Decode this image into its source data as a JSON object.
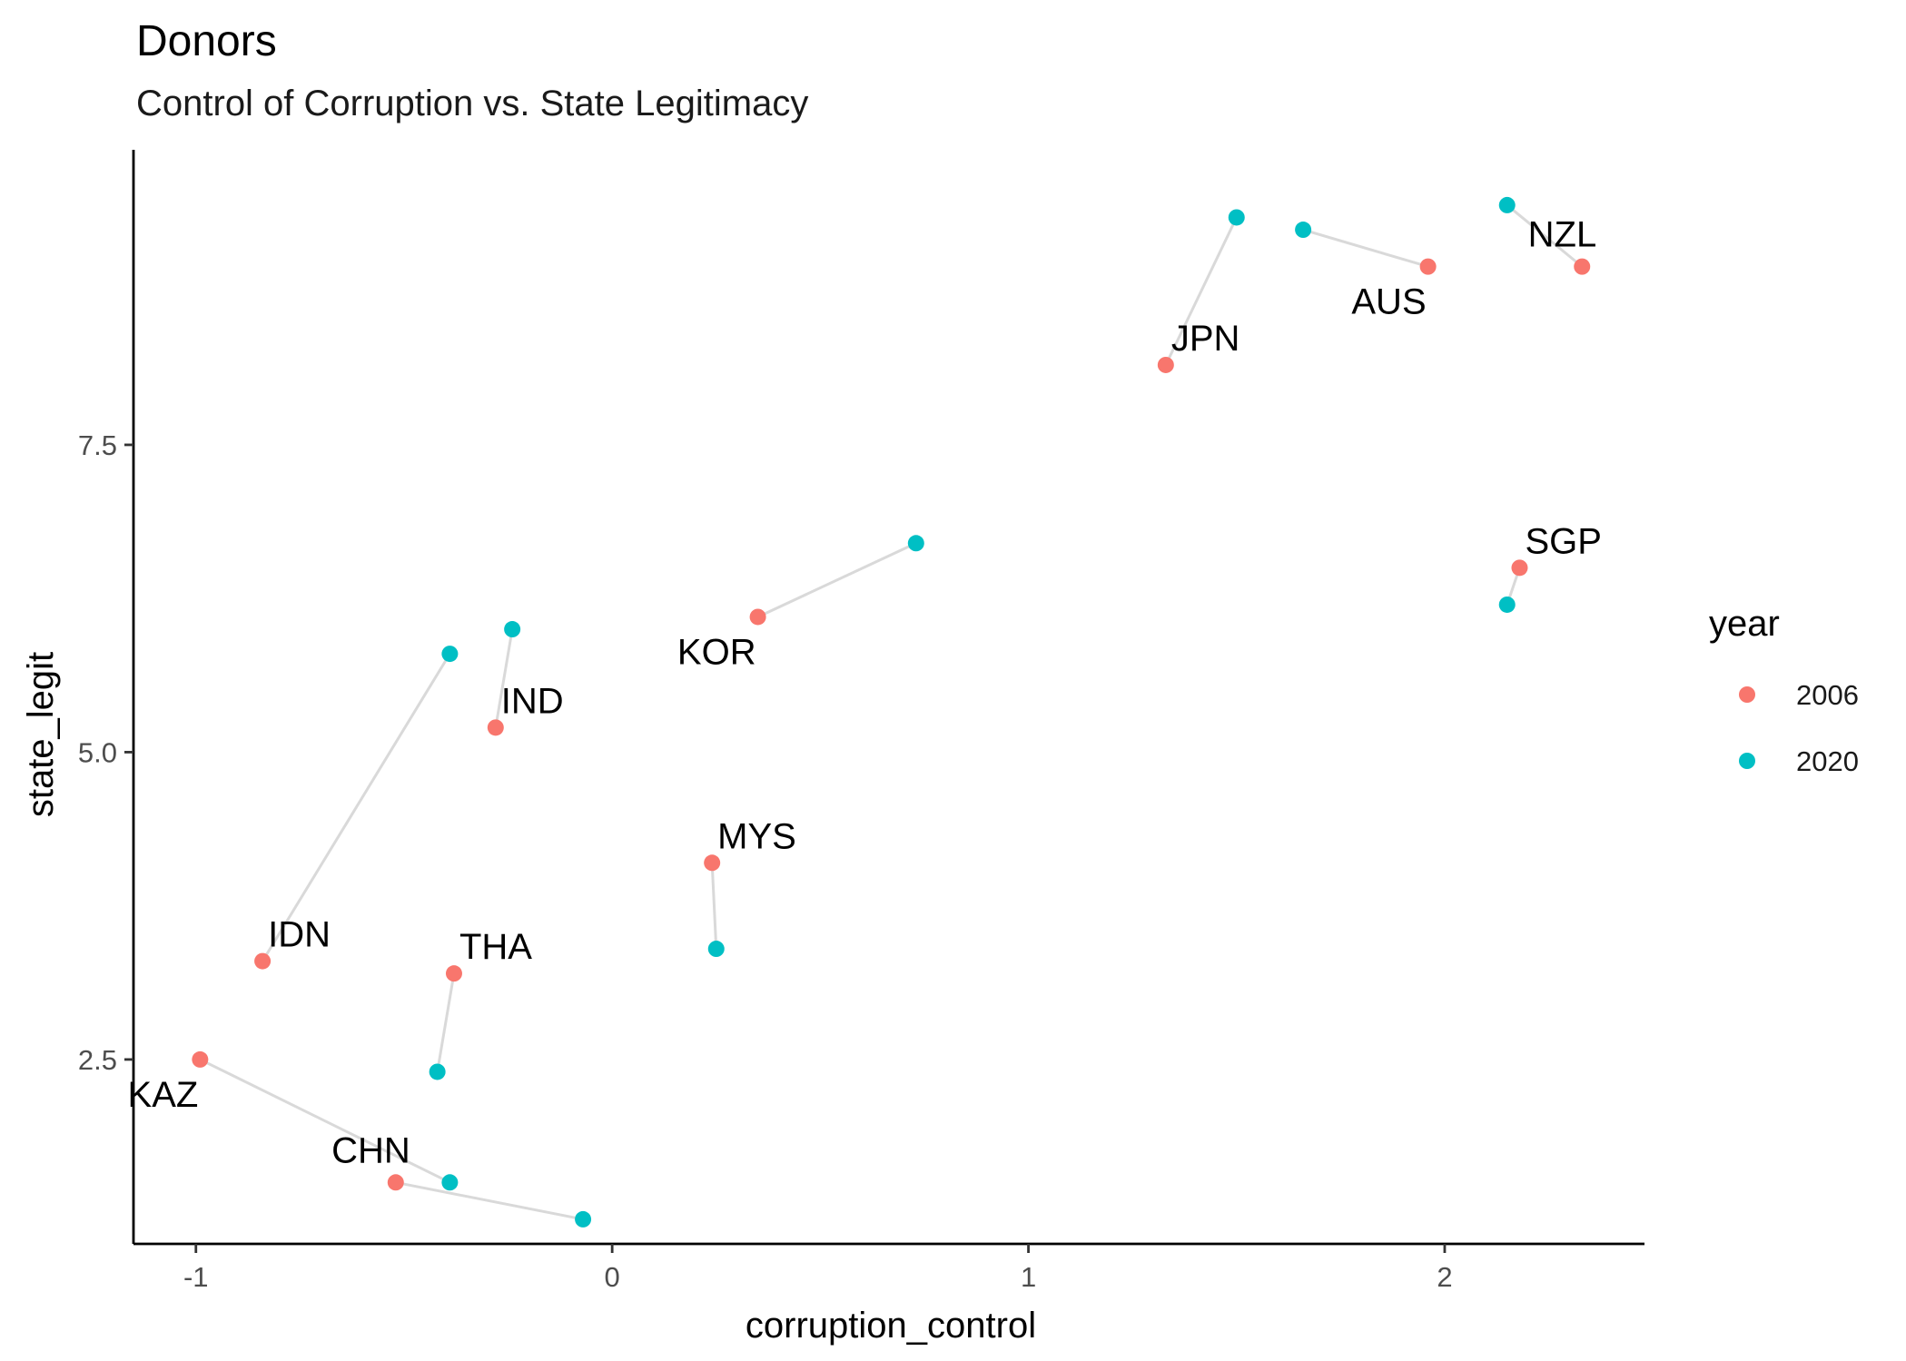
{
  "chart_data": {
    "type": "scatter",
    "title": "Donors",
    "subtitle": "Control of Corruption vs. State Legitimacy",
    "xlabel": "corruption_control",
    "ylabel": "state_legit",
    "xlim": [
      -1.15,
      2.48
    ],
    "ylim": [
      1.0,
      9.9
    ],
    "x_ticks": [
      -1,
      0,
      1,
      2
    ],
    "x_tick_labels": [
      "-1",
      "0",
      "1",
      "2"
    ],
    "y_ticks": [
      2.5,
      5.0,
      7.5
    ],
    "y_tick_labels": [
      "2.5",
      "5.0",
      "7.5"
    ],
    "grid": false,
    "legend": {
      "title": "year",
      "position": "right",
      "entries": [
        {
          "label": "2006",
          "color": "#F8766D"
        },
        {
          "label": "2020",
          "color": "#00BFC4"
        }
      ]
    },
    "connector_color": "#D9D9D9",
    "series": [
      {
        "name": "2006",
        "color": "#F8766D",
        "points": [
          {
            "label": "NZL",
            "x": 2.33,
            "y": 8.95
          },
          {
            "label": "AUS",
            "x": 1.96,
            "y": 8.95
          },
          {
            "label": "JPN",
            "x": 1.33,
            "y": 8.15
          },
          {
            "label": "SGP",
            "x": 2.18,
            "y": 6.5
          },
          {
            "label": "KOR",
            "x": 0.35,
            "y": 6.1
          },
          {
            "label": "IND",
            "x": -0.28,
            "y": 5.2
          },
          {
            "label": "MYS",
            "x": 0.24,
            "y": 4.1
          },
          {
            "label": "IDN",
            "x": -0.84,
            "y": 3.3
          },
          {
            "label": "THA",
            "x": -0.38,
            "y": 3.2
          },
          {
            "label": "KAZ",
            "x": -0.99,
            "y": 2.5
          },
          {
            "label": "CHN",
            "x": -0.52,
            "y": 1.5
          }
        ]
      },
      {
        "name": "2020",
        "color": "#00BFC4",
        "points": [
          {
            "label": "NZL",
            "x": 2.15,
            "y": 9.45
          },
          {
            "label": "AUS",
            "x": 1.66,
            "y": 9.25
          },
          {
            "label": "JPN",
            "x": 1.5,
            "y": 9.35
          },
          {
            "label": "SGP",
            "x": 2.15,
            "y": 6.2
          },
          {
            "label": "KOR",
            "x": 0.73,
            "y": 6.7
          },
          {
            "label": "IND",
            "x": -0.24,
            "y": 6.0
          },
          {
            "label": "MYS",
            "x": 0.25,
            "y": 3.4
          },
          {
            "label": "IDN",
            "x": -0.39,
            "y": 5.8
          },
          {
            "label": "THA",
            "x": -0.42,
            "y": 2.4
          },
          {
            "label": "KAZ",
            "x": -0.39,
            "y": 1.5
          },
          {
            "label": "CHN",
            "x": -0.07,
            "y": 1.2
          }
        ]
      }
    ],
    "point_labels": [
      {
        "text": "NZL",
        "x": 2.33,
        "y": 8.95,
        "placement": "above-left"
      },
      {
        "text": "AUS",
        "x": 1.96,
        "y": 8.95,
        "placement": "below-left"
      },
      {
        "text": "JPN",
        "x": 1.33,
        "y": 8.15,
        "placement": "above-right"
      },
      {
        "text": "SGP",
        "x": 2.18,
        "y": 6.5,
        "placement": "above-right"
      },
      {
        "text": "KOR",
        "x": 0.35,
        "y": 6.1,
        "placement": "below-left"
      },
      {
        "text": "IND",
        "x": -0.28,
        "y": 5.2,
        "placement": "above-right"
      },
      {
        "text": "MYS",
        "x": 0.24,
        "y": 4.1,
        "placement": "above-right"
      },
      {
        "text": "IDN",
        "x": -0.84,
        "y": 3.3,
        "placement": "above-right"
      },
      {
        "text": "THA",
        "x": -0.38,
        "y": 3.2,
        "placement": "above-right"
      },
      {
        "text": "KAZ",
        "x": -0.99,
        "y": 2.5,
        "placement": "below-left"
      },
      {
        "text": "CHN",
        "x": -0.52,
        "y": 1.5,
        "placement": "above-left"
      }
    ]
  }
}
